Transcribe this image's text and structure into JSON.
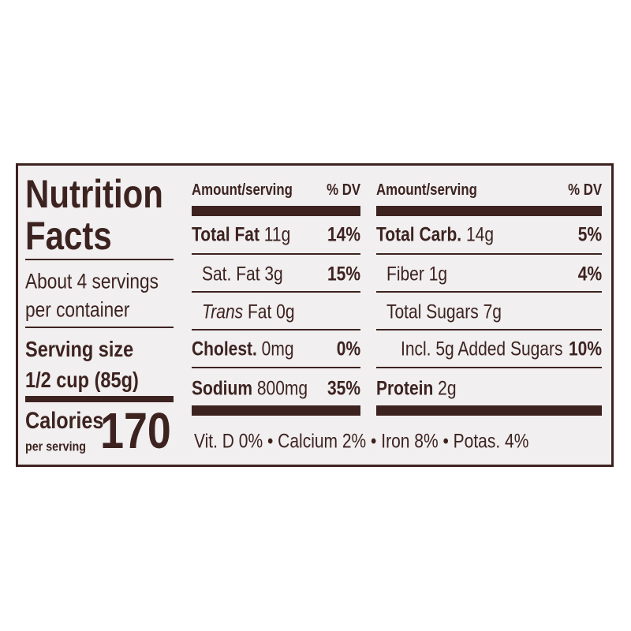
{
  "label": {
    "title_line1": "Nutrition",
    "title_line2": "Facts",
    "servings_line1": "About 4 servings",
    "servings_line2": "per container",
    "serving_size_label": "Serving size",
    "serving_size": "1/2 cup (85g)",
    "calories_label": "Calories",
    "calories_sub": "per serving",
    "calories": 170,
    "columns": [
      {
        "header": "Amount/serving",
        "dv_header": "% DV",
        "rows": [
          {
            "name": "Total Fat",
            "amount": "11g",
            "dv": "14%"
          },
          {
            "name": "Sat. Fat",
            "amount": "3g",
            "dv": "15%"
          },
          {
            "name_italic": "Trans",
            "name": "Fat",
            "amount": "0g"
          },
          {
            "name": "Cholest.",
            "amount": "0mg",
            "dv": "0%"
          },
          {
            "name": "Sodium",
            "amount": "800mg",
            "dv": "35%"
          }
        ]
      },
      {
        "header": "Amount/serving",
        "dv_header": "% DV",
        "rows": [
          {
            "name": "Total Carb.",
            "amount": "14g",
            "dv": "5%"
          },
          {
            "name": "Fiber",
            "amount": "1g",
            "dv": "4%"
          },
          {
            "name": "Total Sugars",
            "amount": "7g"
          },
          {
            "name": "Incl. 5g Added Sugars",
            "dv": "10%"
          },
          {
            "name": "Protein",
            "amount": "2g"
          }
        ]
      }
    ],
    "vitamins": [
      "Vit. D 0%",
      "Calcium 2%",
      "Iron 8%",
      "Potas. 4%"
    ]
  }
}
